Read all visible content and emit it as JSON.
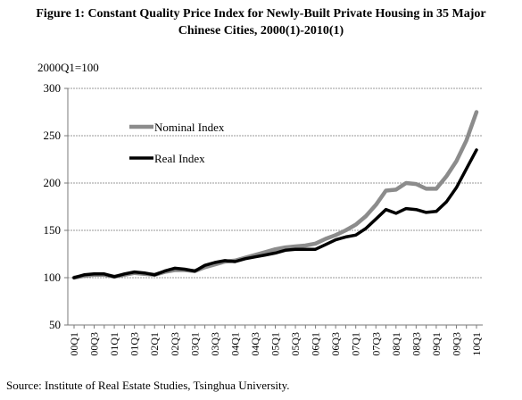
{
  "figure": {
    "title_line1": "Figure 1:   Constant Quality Price Index for Newly-Built Private Housing in 35 Major",
    "title_line2": "Chinese Cities, 2000(1)-2010(1)",
    "source": "Source: Institute of Real Estate Studies, Tsinghua University."
  },
  "chart_data": {
    "type": "line",
    "ylabel": "2000Q1=100",
    "ylim": [
      50,
      300
    ],
    "yticks": [
      50,
      100,
      150,
      200,
      250,
      300
    ],
    "grid": true,
    "legend_position": "upper-left",
    "categories": [
      "00Q1",
      "00Q2",
      "00Q3",
      "00Q4",
      "01Q1",
      "01Q2",
      "01Q3",
      "01Q4",
      "02Q1",
      "02Q2",
      "02Q3",
      "02Q4",
      "03Q1",
      "03Q2",
      "03Q3",
      "03Q4",
      "04Q1",
      "04Q2",
      "04Q3",
      "04Q4",
      "05Q1",
      "05Q2",
      "05Q3",
      "05Q4",
      "06Q1",
      "06Q2",
      "06Q3",
      "06Q4",
      "07Q1",
      "07Q2",
      "07Q3",
      "07Q4",
      "08Q1",
      "08Q2",
      "08Q3",
      "08Q4",
      "09Q1",
      "09Q2",
      "09Q3",
      "09Q4",
      "10Q1"
    ],
    "x_tick_labels": [
      "00Q1",
      "00Q3",
      "01Q1",
      "01Q3",
      "02Q1",
      "02Q3",
      "03Q1",
      "03Q3",
      "04Q1",
      "04Q3",
      "05Q1",
      "05Q3",
      "06Q1",
      "06Q3",
      "07Q1",
      "07Q3",
      "08Q1",
      "08Q3",
      "09Q1",
      "09Q3",
      "10Q1"
    ],
    "series": [
      {
        "name": "Nominal Index",
        "color": "#8c8c8c",
        "values": [
          100,
          102,
          103,
          103,
          101,
          103,
          105,
          104,
          103,
          106,
          108,
          108,
          107,
          111,
          114,
          117,
          118,
          121,
          124,
          127,
          130,
          132,
          133,
          134,
          136,
          141,
          145,
          150,
          156,
          165,
          177,
          192,
          193,
          200,
          199,
          194,
          194,
          207,
          223,
          245,
          275
        ]
      },
      {
        "name": "Real Index",
        "color": "#000000",
        "values": [
          100,
          103,
          104,
          104,
          101,
          104,
          106,
          105,
          103,
          107,
          110,
          109,
          107,
          113,
          116,
          118,
          117,
          120,
          122,
          124,
          126,
          129,
          130,
          130,
          130,
          135,
          140,
          143,
          145,
          152,
          162,
          172,
          168,
          173,
          172,
          169,
          170,
          180,
          195,
          215,
          235
        ]
      }
    ]
  }
}
